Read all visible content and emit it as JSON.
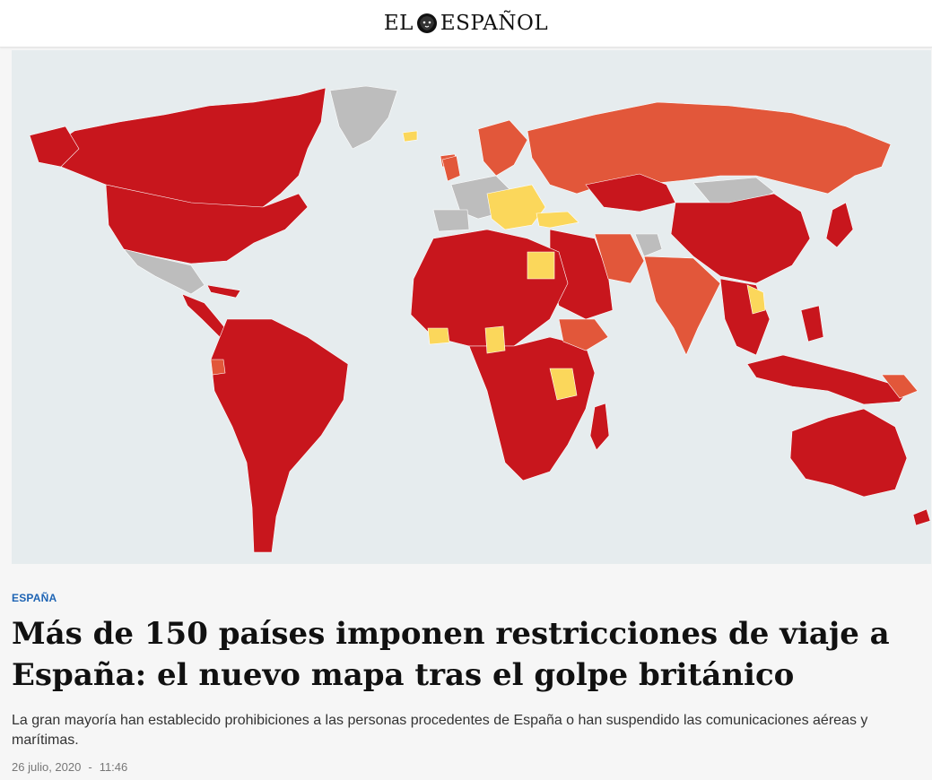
{
  "header": {
    "logo_text_left": "EL",
    "logo_text_right": "ESPAÑOL"
  },
  "map": {
    "legend_colors": {
      "total_restriction": "#c8161d",
      "partial_restriction": "#e2573a",
      "quarantine": "#fbd75b",
      "no_restriction": "#bdbdbd",
      "ocean": "#e6ecee"
    }
  },
  "article": {
    "section": "ESPAÑA",
    "title": "Más de 150 países imponen restricciones de viaje a España: el nuevo mapa tras el golpe británico",
    "subtitle": "La gran mayoría han establecido prohibiciones a las personas procedentes de España o han suspendido las comunicaciones aéreas y marítimas.",
    "date": "26 julio, 2020",
    "separator": "-",
    "time": "11:46"
  }
}
